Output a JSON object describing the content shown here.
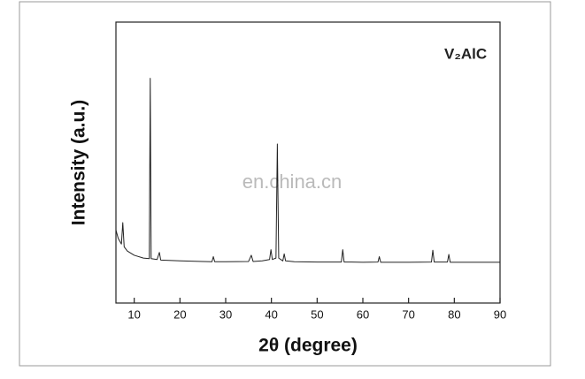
{
  "chart_data": {
    "type": "line",
    "x_label": "2θ (degree)",
    "y_label": "Intensity (a.u.)",
    "annotation": "V₂AlC",
    "watermark": "en.china.cn",
    "xlim": [
      6,
      90
    ],
    "xticks": [
      10,
      20,
      30,
      40,
      50,
      60,
      70,
      80,
      90
    ],
    "ylim": [
      0,
      100
    ],
    "series": [
      {
        "color": "#222222",
        "x": [
          6,
          6.5,
          7.2,
          7.5,
          7.8,
          8.5,
          10,
          12,
          13.3,
          13.5,
          13.7,
          15,
          15.5,
          15.8,
          20,
          25,
          27,
          27.3,
          27.6,
          30,
          35,
          35.6,
          36,
          38,
          39.6,
          39.9,
          40.2,
          41,
          41.3,
          41.6,
          42.5,
          42.8,
          43.1,
          45,
          50,
          55.3,
          55.6,
          55.9,
          57.5,
          60,
          63.3,
          63.6,
          63.9,
          70,
          75,
          75.3,
          75.6,
          78.5,
          78.8,
          79.1,
          85,
          90
        ],
        "values": [
          26,
          23,
          21,
          28.6,
          20,
          18.5,
          17,
          16,
          15.8,
          80,
          15.8,
          15.5,
          18,
          15.3,
          15,
          14.8,
          14.7,
          16.5,
          14.7,
          14.7,
          14.8,
          17,
          14.8,
          15,
          15.5,
          19,
          15.5,
          16,
          56.6,
          16,
          15,
          17.5,
          15,
          14.7,
          14.6,
          14.6,
          19,
          14.6,
          14.6,
          14.5,
          14.6,
          16.5,
          14.5,
          14.5,
          14.6,
          18.8,
          14.6,
          14.6,
          17.3,
          14.5,
          14.5,
          14.5
        ]
      }
    ]
  }
}
